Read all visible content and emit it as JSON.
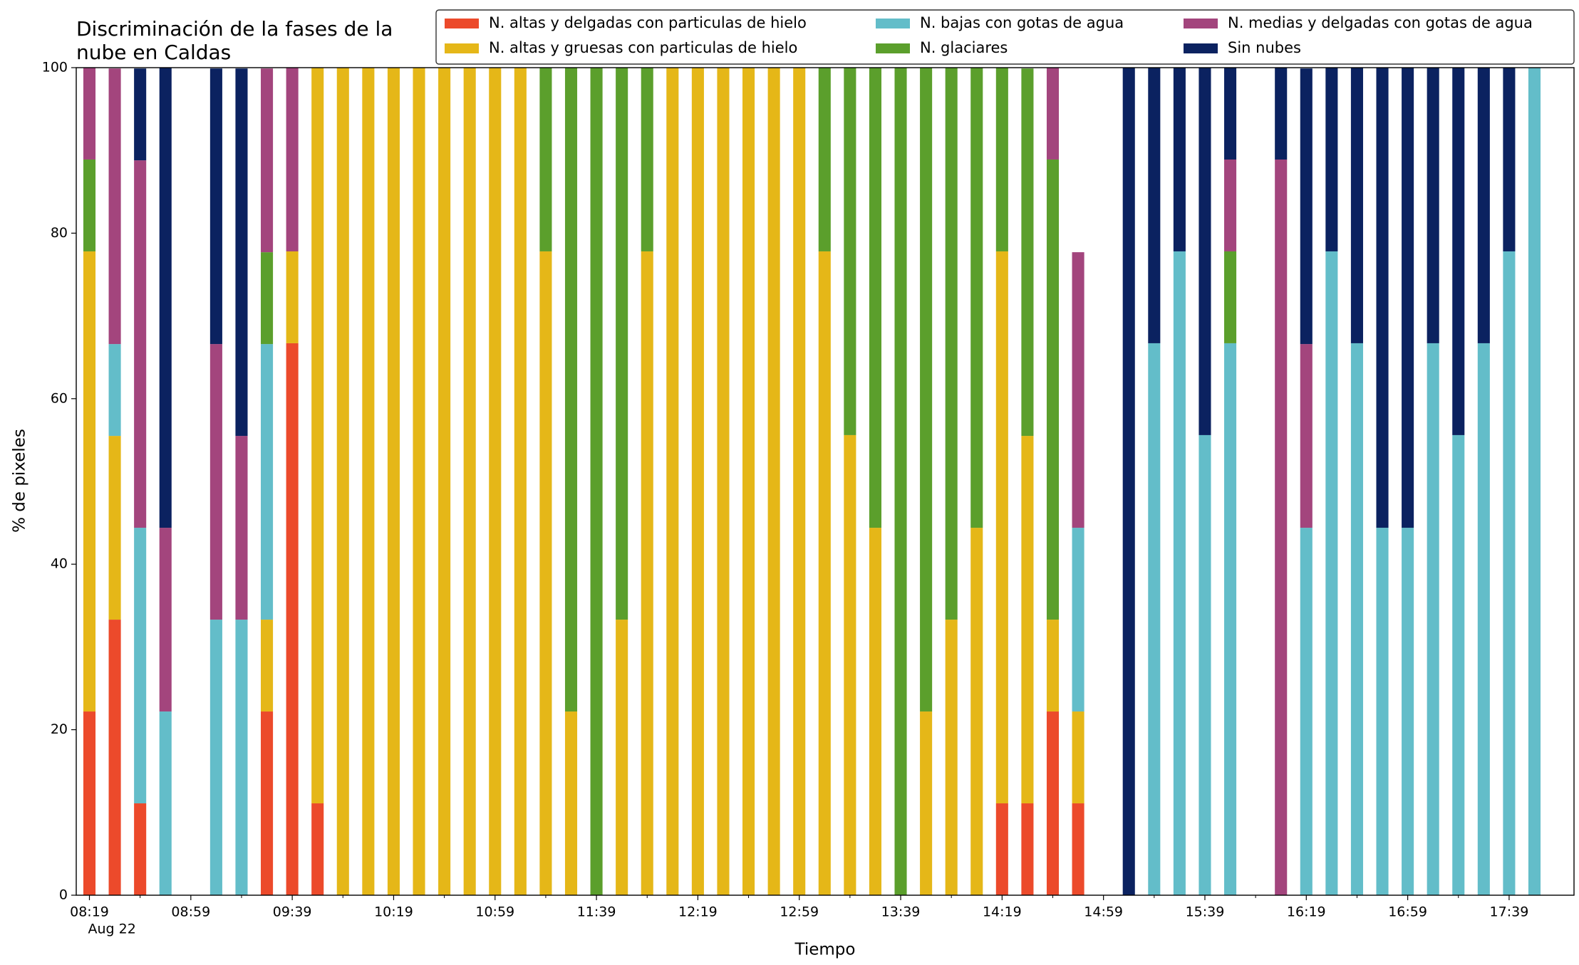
{
  "chart_data": {
    "type": "stacked_bar",
    "title": "Discriminación de la fases de la\nnube en Caldas",
    "xlabel": "Tiempo",
    "ylabel": "% de pixeles",
    "x_date_label": "Aug 22",
    "categories": [
      "08:19",
      null,
      null,
      null,
      "08:59",
      null,
      null,
      null,
      "09:39",
      null,
      null,
      null,
      "10:19",
      null,
      null,
      null,
      "10:59",
      null,
      null,
      null,
      "11:39",
      null,
      null,
      null,
      "12:19",
      null,
      null,
      null,
      "12:59",
      null,
      null,
      null,
      "13:39",
      null,
      null,
      null,
      "14:19",
      null,
      null,
      null,
      "14:59",
      null,
      null,
      null,
      "15:39",
      null,
      null,
      null,
      "16:19",
      null,
      null,
      null,
      "16:59",
      null,
      null,
      null,
      "17:39",
      null
    ],
    "ylim": [
      0,
      100
    ],
    "yticks": [
      0,
      20,
      40,
      60,
      80,
      100
    ],
    "legend": "top-right",
    "series": [
      {
        "name": "N. altas y delgadas con particulas de hielo",
        "color": "#ec4a2b",
        "values": [
          22.2,
          33.3,
          11.1,
          0,
          0,
          0,
          0,
          22.2,
          66.7,
          11.1,
          0,
          0,
          0,
          0,
          0,
          0,
          0,
          0,
          0,
          0,
          0,
          0,
          0,
          0,
          0,
          0,
          0,
          0,
          0,
          0,
          0,
          0,
          0,
          0,
          0,
          0,
          11.1,
          11.1,
          22.2,
          11.1,
          0,
          0,
          0,
          0,
          0,
          0,
          0,
          0,
          0,
          0,
          0,
          0,
          0,
          0,
          0,
          0,
          0,
          0
        ]
      },
      {
        "name": "N. altas y gruesas con particulas de hielo",
        "color": "#e5b718",
        "values": [
          55.6,
          22.2,
          0,
          0,
          0,
          0,
          0,
          11.1,
          11.1,
          88.9,
          100,
          100,
          100,
          100,
          100,
          100,
          100,
          100,
          77.8,
          22.2,
          0,
          33.3,
          77.8,
          100,
          100,
          100,
          100,
          100,
          100,
          77.8,
          55.6,
          44.4,
          0,
          22.2,
          33.3,
          44.4,
          66.7,
          44.4,
          11.1,
          11.1,
          0,
          0,
          0,
          0,
          0,
          0,
          0,
          0,
          0,
          0,
          0,
          0,
          0,
          0,
          0,
          0,
          0,
          0
        ]
      },
      {
        "name": "N. bajas con gotas de agua",
        "color": "#63bdc9",
        "values": [
          0,
          11.1,
          33.3,
          22.2,
          0,
          33.3,
          33.3,
          33.3,
          0,
          0,
          0,
          0,
          0,
          0,
          0,
          0,
          0,
          0,
          0,
          0,
          0,
          0,
          0,
          0,
          0,
          0,
          0,
          0,
          0,
          0,
          0,
          0,
          0,
          0,
          0,
          0,
          0,
          0,
          0,
          22.2,
          0,
          0,
          66.7,
          77.8,
          55.6,
          66.7,
          0,
          0,
          44.4,
          77.8,
          66.7,
          44.4,
          44.4,
          66.7,
          55.6,
          66.7,
          77.8,
          100
        ]
      },
      {
        "name": "N. glaciares",
        "color": "#5b9f2c",
        "values": [
          11.1,
          0,
          0,
          0,
          0,
          0,
          0,
          11.1,
          0,
          0,
          0,
          0,
          0,
          0,
          0,
          0,
          0,
          0,
          22.2,
          77.8,
          100,
          66.7,
          22.2,
          0,
          0,
          0,
          0,
          0,
          0,
          22.2,
          44.4,
          55.6,
          100,
          77.8,
          66.7,
          55.6,
          22.2,
          44.4,
          55.6,
          0,
          0,
          0,
          0,
          0,
          0,
          11.1,
          0,
          0,
          0,
          0,
          0,
          0,
          0,
          0,
          0,
          0,
          0,
          0
        ]
      },
      {
        "name": "N. medias y delgadas con gotas de agua",
        "color": "#a3457d",
        "values": [
          11.1,
          33.3,
          44.4,
          22.2,
          0,
          33.3,
          22.2,
          22.2,
          22.2,
          0,
          0,
          0,
          0,
          0,
          0,
          0,
          0,
          0,
          0,
          0,
          0,
          0,
          0,
          0,
          0,
          0,
          0,
          0,
          0,
          0,
          0,
          0,
          0,
          0,
          0,
          0,
          0,
          0,
          11.1,
          33.3,
          0,
          0,
          0,
          0,
          0,
          11.1,
          0,
          88.9,
          22.2,
          0,
          0,
          0,
          0,
          0,
          0,
          0,
          0,
          0
        ]
      },
      {
        "name": "Sin nubes",
        "color": "#0b2260",
        "values": [
          0,
          0,
          11.1,
          55.6,
          0,
          33.3,
          44.4,
          0,
          0,
          0,
          0,
          0,
          0,
          0,
          0,
          0,
          0,
          0,
          0,
          0,
          0,
          0,
          0,
          0,
          0,
          0,
          0,
          0,
          0,
          0,
          0,
          0,
          0,
          0,
          0,
          0,
          0,
          0,
          0,
          0,
          0,
          100,
          33.3,
          22.2,
          44.4,
          11.1,
          0,
          11.1,
          33.3,
          22.2,
          33.3,
          55.6,
          55.6,
          33.3,
          44.4,
          33.3,
          22.2,
          0
        ]
      }
    ]
  }
}
